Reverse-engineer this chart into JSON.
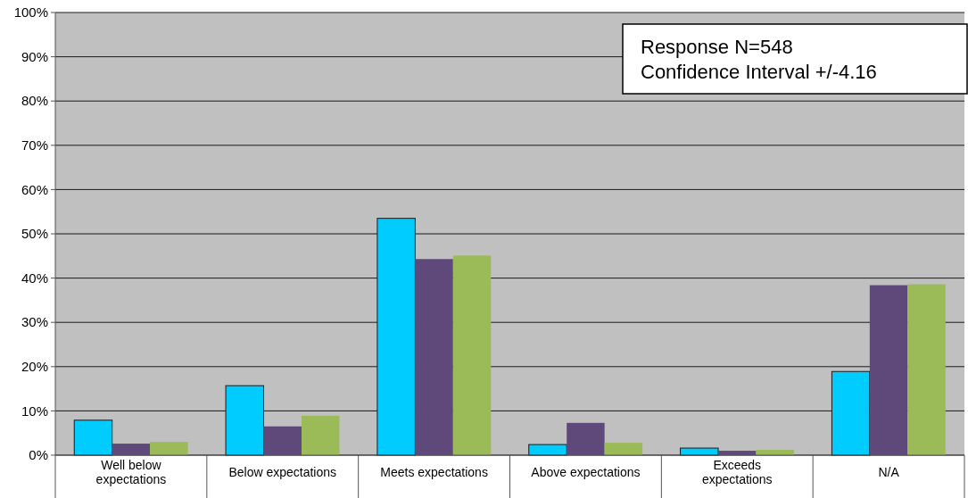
{
  "chart_data": {
    "type": "bar",
    "categories": [
      "Well below expectations",
      "Below expectations",
      "Meets expectations",
      "Above expectations",
      "Exceeds expectations",
      "N/A"
    ],
    "series": [
      {
        "color": "#00ccff",
        "values": [
          7.9,
          15.7,
          53.5,
          2.4,
          1.6,
          18.9
        ]
      },
      {
        "color": "#5f497a",
        "values": [
          2.6,
          6.5,
          44.3,
          7.3,
          1.0,
          38.4
        ]
      },
      {
        "color": "#9bbb59",
        "values": [
          3.0,
          8.9,
          45.1,
          2.8,
          1.2,
          38.6
        ]
      }
    ],
    "ylim": [
      0,
      100
    ],
    "yticks": [
      {
        "value": 0,
        "label": "0%"
      },
      {
        "value": 10,
        "label": "10%"
      },
      {
        "value": 20,
        "label": "20%"
      },
      {
        "value": 30,
        "label": "30%"
      },
      {
        "value": 40,
        "label": "40%"
      },
      {
        "value": 50,
        "label": "50%"
      },
      {
        "value": 60,
        "label": "60%"
      },
      {
        "value": 70,
        "label": "70%"
      },
      {
        "value": 80,
        "label": "80%"
      },
      {
        "value": 90,
        "label": "90%"
      },
      {
        "value": 100,
        "label": "100%"
      }
    ],
    "grid": "y",
    "annotations": [
      "Response N=548",
      "Confidence Interval +/-4.16"
    ]
  }
}
